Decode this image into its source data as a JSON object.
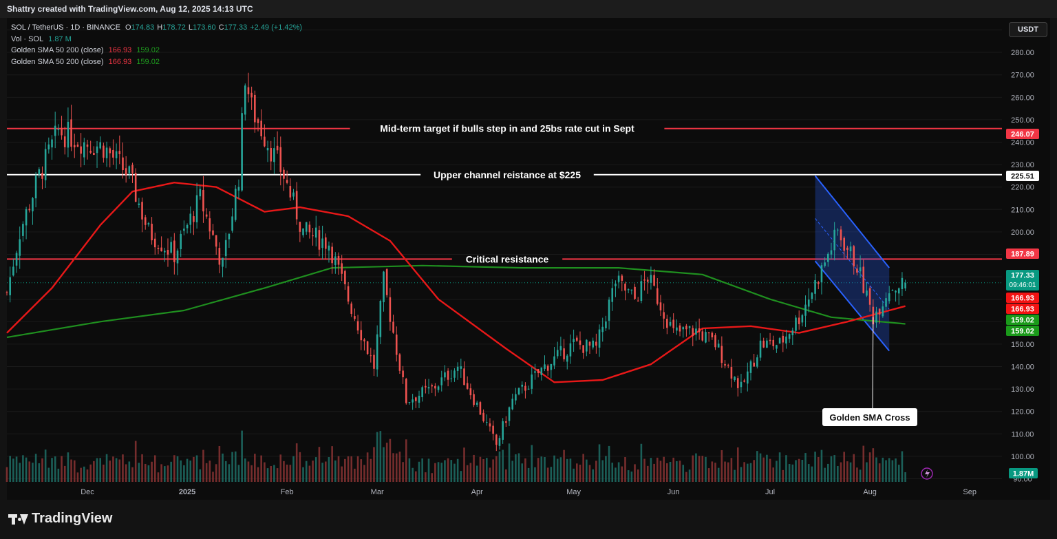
{
  "header": {
    "credit": "Shattry created with TradingView.com, Aug 12, 2025 14:13 UTC"
  },
  "legend": {
    "symbol": "SOL / TetherUS · 1D · BINANCE",
    "ohlc": {
      "o_label": "O",
      "open": "174.83",
      "h_label": "H",
      "high": "178.72",
      "l_label": "L",
      "low": "173.60",
      "c_label": "C",
      "close": "177.33",
      "change": "+2.49 (+1.42%)"
    },
    "volume_label": "Vol · SOL",
    "volume_value": "1.87 M",
    "indicators": [
      {
        "label": "Golden SMA 50 200 (close)",
        "v1": "166.93",
        "v2": "159.02"
      },
      {
        "label": "Golden SMA 50 200 (close)",
        "v1": "166.93",
        "v2": "159.02"
      }
    ]
  },
  "currency_button": "USDT",
  "colors": {
    "up": "#26a69a",
    "down": "#ef5350",
    "sma50": "#e81818",
    "sma200": "#1f8f1f",
    "hline_red": "#f23645",
    "hline_white": "#ffffff",
    "channel": "#2962ff"
  },
  "chart_data": {
    "type": "candlestick",
    "symbol": "SOL / TetherUS",
    "interval": "1D",
    "exchange": "BINANCE",
    "y_range": [
      84,
      296
    ],
    "y_ticks": [
      90,
      100,
      110,
      120,
      130,
      140,
      150,
      160,
      170,
      180,
      190,
      200,
      210,
      220,
      230,
      240,
      250,
      260,
      270,
      280,
      290
    ],
    "x_labels": [
      "Dec",
      "2025",
      "Feb",
      "Mar",
      "Apr",
      "May",
      "Jun",
      "Jul",
      "Aug",
      "Sep"
    ],
    "x_range": [
      "2024-11-06",
      "2025-09-11"
    ],
    "close_path": [
      [
        "2024-11-06",
        173
      ],
      [
        "2024-11-10",
        200
      ],
      [
        "2024-11-16",
        225
      ],
      [
        "2024-11-22",
        245
      ],
      [
        "2024-11-30",
        240
      ],
      [
        "2024-12-06",
        238
      ],
      [
        "2024-12-14",
        225
      ],
      [
        "2024-12-20",
        200
      ],
      [
        "2024-12-28",
        190
      ],
      [
        "2025-01-05",
        215
      ],
      [
        "2025-01-12",
        185
      ],
      [
        "2025-01-17",
        225
      ],
      [
        "2025-01-19",
        270
      ],
      [
        "2025-01-21",
        255
      ],
      [
        "2025-01-26",
        240
      ],
      [
        "2025-01-31",
        225
      ],
      [
        "2025-02-06",
        200
      ],
      [
        "2025-02-14",
        195
      ],
      [
        "2025-02-20",
        170
      ],
      [
        "2025-02-28",
        140
      ],
      [
        "2025-03-03",
        178
      ],
      [
        "2025-03-10",
        125
      ],
      [
        "2025-03-18",
        130
      ],
      [
        "2025-03-26",
        140
      ],
      [
        "2025-04-02",
        120
      ],
      [
        "2025-04-07",
        105
      ],
      [
        "2025-04-12",
        125
      ],
      [
        "2025-04-22",
        140
      ],
      [
        "2025-05-01",
        150
      ],
      [
        "2025-05-08",
        148
      ],
      [
        "2025-05-14",
        178
      ],
      [
        "2025-05-20",
        170
      ],
      [
        "2025-05-24",
        180
      ],
      [
        "2025-06-01",
        155
      ],
      [
        "2025-06-08",
        156
      ],
      [
        "2025-06-14",
        150
      ],
      [
        "2025-06-22",
        130
      ],
      [
        "2025-06-28",
        150
      ],
      [
        "2025-07-04",
        150
      ],
      [
        "2025-07-10",
        162
      ],
      [
        "2025-07-16",
        180
      ],
      [
        "2025-07-22",
        200
      ],
      [
        "2025-07-28",
        185
      ],
      [
        "2025-08-02",
        162
      ],
      [
        "2025-08-07",
        175
      ],
      [
        "2025-08-12",
        177.33
      ]
    ],
    "sma50": [
      [
        "2024-11-06",
        155
      ],
      [
        "2024-11-20",
        175
      ],
      [
        "2024-12-05",
        203
      ],
      [
        "2024-12-15",
        218
      ],
      [
        "2024-12-28",
        222
      ],
      [
        "2025-01-10",
        220
      ],
      [
        "2025-01-25",
        209
      ],
      [
        "2025-02-05",
        211
      ],
      [
        "2025-02-20",
        207
      ],
      [
        "2025-03-05",
        196
      ],
      [
        "2025-03-20",
        170
      ],
      [
        "2025-04-10",
        148
      ],
      [
        "2025-04-25",
        133
      ],
      [
        "2025-05-10",
        134
      ],
      [
        "2025-05-25",
        141
      ],
      [
        "2025-06-10",
        157
      ],
      [
        "2025-06-25",
        158
      ],
      [
        "2025-07-10",
        155
      ],
      [
        "2025-07-25",
        160
      ],
      [
        "2025-08-12",
        166.93
      ]
    ],
    "sma200": [
      [
        "2024-11-06",
        153
      ],
      [
        "2024-12-05",
        160
      ],
      [
        "2024-12-31",
        165
      ],
      [
        "2025-01-25",
        175
      ],
      [
        "2025-02-15",
        184
      ],
      [
        "2025-03-15",
        185
      ],
      [
        "2025-04-15",
        184
      ],
      [
        "2025-05-15",
        184
      ],
      [
        "2025-06-10",
        181
      ],
      [
        "2025-07-01",
        170
      ],
      [
        "2025-07-20",
        162
      ],
      [
        "2025-08-12",
        159.02
      ]
    ],
    "volume_max_M": 10,
    "volume_badge": "1.87M",
    "horizontal_lines": [
      {
        "price": 246.07,
        "label": "Mid-term target if bulls step in and 25bs rate cut in Sept",
        "color": "red"
      },
      {
        "price": 225.51,
        "label": "Upper channel reistance at $225",
        "color": "white"
      },
      {
        "price": 187.89,
        "label": "Critical resistance",
        "color": "red"
      }
    ],
    "channel": {
      "upper": [
        [
          "2025-07-15",
          225
        ],
        [
          "2025-08-07",
          184
        ]
      ],
      "lower": [
        [
          "2025-07-15",
          187
        ],
        [
          "2025-08-07",
          147
        ]
      ]
    },
    "annotation": {
      "text": "Golden SMA Cross",
      "target": [
        "2025-08-02",
        162
      ]
    },
    "price_badges": [
      {
        "value": "246.07",
        "bg": "#f23645",
        "fg": "#ffffff"
      },
      {
        "value": "225.51",
        "bg": "#ffffff",
        "fg": "#131313"
      },
      {
        "value": "187.89",
        "bg": "#f23645",
        "fg": "#ffffff"
      },
      {
        "value": "177.33",
        "sub": "09:46:01",
        "bg": "#089981",
        "fg": "#ffffff"
      },
      {
        "value": "166.93",
        "bg": "#f21313",
        "fg": "#ffffff"
      },
      {
        "value": "166.93",
        "bg": "#f21313",
        "fg": "#ffffff"
      },
      {
        "value": "159.02",
        "bg": "#1a9a1a",
        "fg": "#ffffff"
      },
      {
        "value": "159.02",
        "bg": "#1a9a1a",
        "fg": "#ffffff"
      }
    ]
  },
  "footer": {
    "logo_text": "TradingView"
  }
}
